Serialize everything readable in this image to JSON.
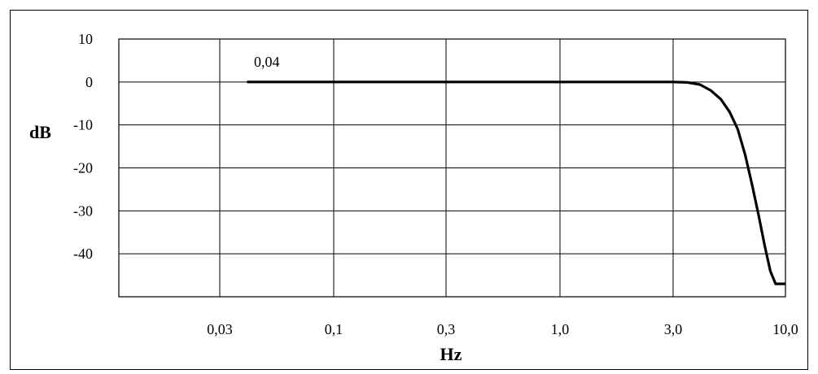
{
  "chart_data": {
    "type": "line",
    "title": "",
    "xlabel": "Hz",
    "ylabel": "dB",
    "x_scale": "log",
    "x_tick_labels": [
      "0,03",
      "0,1",
      "0,3",
      "1,0",
      "3,0",
      "10,0"
    ],
    "x_ticks": [
      0.03,
      0.1,
      0.3,
      1.0,
      3.0,
      10.0
    ],
    "y_tick_labels": [
      "10",
      "0",
      "-10",
      "-20",
      "-30",
      "-40"
    ],
    "y_ticks": [
      10,
      0,
      -10,
      -20,
      -30,
      -40
    ],
    "ylim": [
      -50,
      10
    ],
    "grid": true,
    "annotation": "0,04",
    "series": [
      {
        "x": [
          0.04,
          0.1,
          0.3,
          1.0,
          3.0,
          3.5,
          4.0,
          4.5,
          5.0,
          5.5,
          6.0,
          6.5,
          7.0,
          7.5,
          8.0,
          8.5,
          9.0,
          10.0
        ],
        "y": [
          0,
          0,
          0,
          0,
          0,
          -0.1,
          -0.6,
          -2,
          -4,
          -7,
          -11,
          -17,
          -24,
          -31,
          -38,
          -44,
          -47,
          -47
        ]
      }
    ]
  }
}
